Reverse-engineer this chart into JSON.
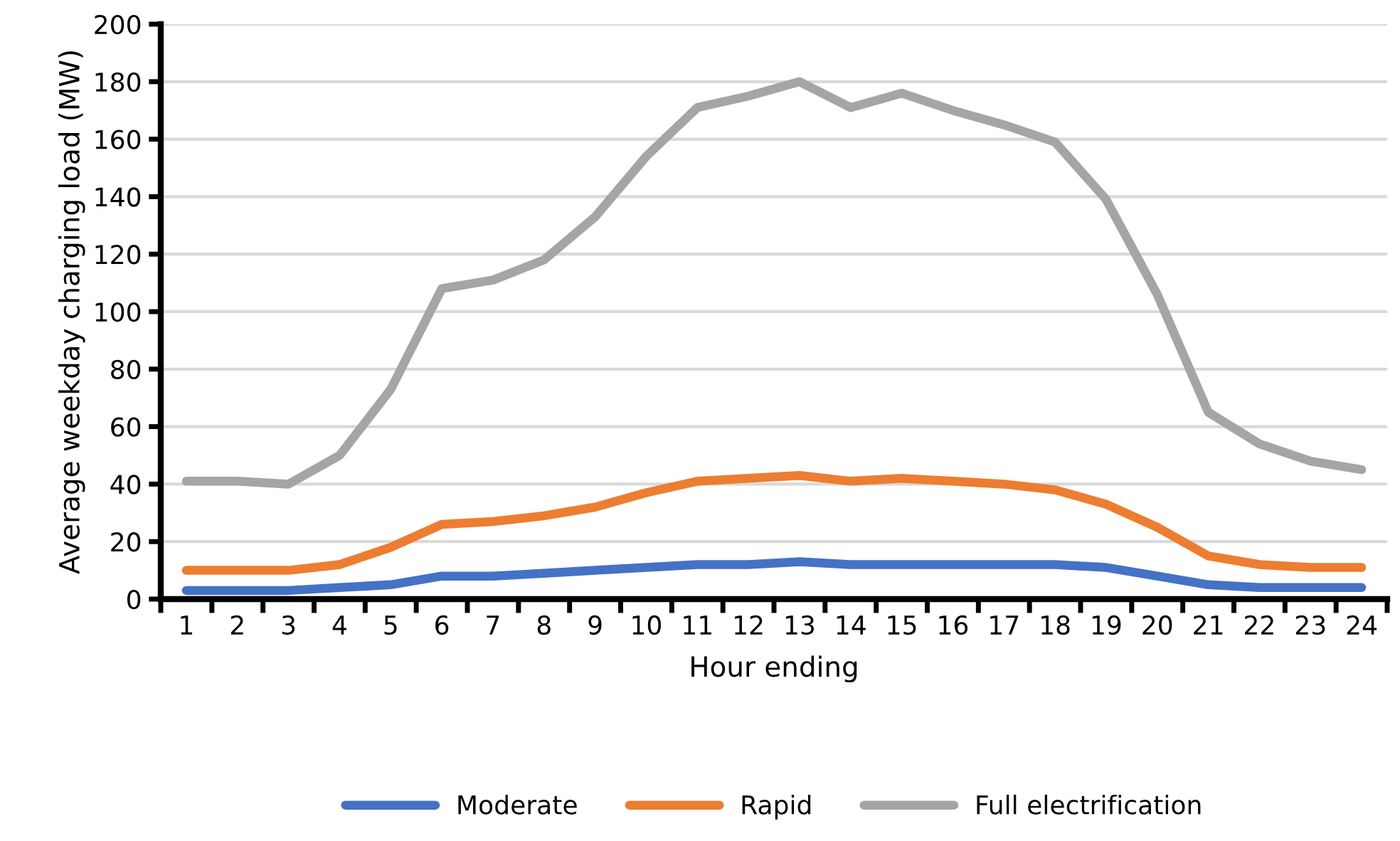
{
  "chart_data": {
    "type": "line",
    "xlabel": "Hour ending",
    "ylabel": "Average weekday charging load (MW)",
    "categories": [
      "1",
      "2",
      "3",
      "4",
      "5",
      "6",
      "7",
      "8",
      "9",
      "10",
      "11",
      "12",
      "13",
      "14",
      "15",
      "16",
      "17",
      "18",
      "19",
      "20",
      "21",
      "22",
      "23",
      "24"
    ],
    "series": [
      {
        "name": "Moderate",
        "color": "#4472c4",
        "values": [
          3,
          3,
          3,
          4,
          5,
          8,
          8,
          9,
          10,
          11,
          12,
          12,
          13,
          12,
          12,
          12,
          12,
          12,
          11,
          8,
          5,
          4,
          4,
          4
        ]
      },
      {
        "name": "Rapid",
        "color": "#ed7d31",
        "values": [
          10,
          10,
          10,
          12,
          18,
          26,
          27,
          29,
          32,
          37,
          41,
          42,
          43,
          41,
          42,
          41,
          40,
          38,
          33,
          25,
          15,
          12,
          11,
          11
        ]
      },
      {
        "name": "Full electrification",
        "color": "#a5a5a5",
        "values": [
          41,
          41,
          40,
          50,
          73,
          108,
          111,
          118,
          133,
          154,
          171,
          175,
          180,
          171,
          176,
          170,
          165,
          159,
          139,
          106,
          65,
          54,
          48,
          45
        ]
      }
    ],
    "ylim": [
      0,
      200
    ],
    "yticks": [
      0,
      20,
      40,
      60,
      80,
      100,
      120,
      140,
      160,
      180,
      200
    ],
    "grid": "y",
    "legend": "bottom",
    "marker": "none",
    "line_style": "solid"
  }
}
